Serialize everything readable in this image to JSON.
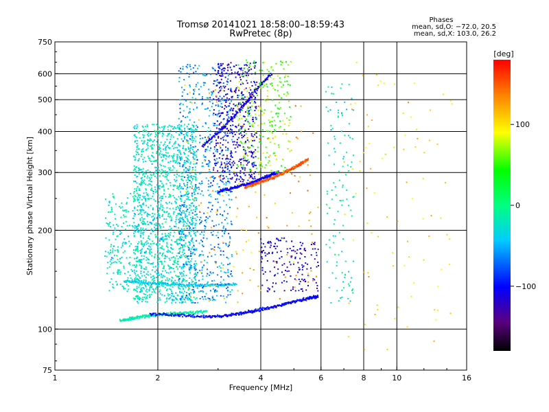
{
  "header": {
    "title_line1": "Tromsø 20141021 18:58:00–18:59:43",
    "title_line2": "RwPretec (8p)",
    "stats_heading": "Phases",
    "stats_o": "mean, sd,O: −72.0, 20.5",
    "stats_x": "mean, sd,X: 103.0, 26.2"
  },
  "chart_data": {
    "type": "scatter",
    "xlabel": "Frequency [MHz]",
    "ylabel": "Stationary phase Virtual Height [km]",
    "x_scale": "log",
    "y_scale": "log",
    "xlim": [
      1,
      16
    ],
    "ylim": [
      75,
      750
    ],
    "x_ticks": [
      1,
      2,
      4,
      6,
      8,
      10,
      16
    ],
    "x_tick_labels": [
      "1",
      "2",
      "4",
      "6",
      "8",
      "10",
      "16"
    ],
    "y_ticks": [
      75,
      100,
      200,
      300,
      400,
      500,
      600,
      750
    ],
    "y_tick_labels": [
      "75",
      "100",
      "200",
      "300",
      "400",
      "500",
      "600",
      "750"
    ],
    "x_grid": [
      2,
      4,
      6,
      8,
      10
    ],
    "y_grid": [
      100,
      200,
      300,
      400,
      500,
      600
    ],
    "grid": true,
    "colorbar": {
      "label": "[deg]",
      "range": [
        -180,
        180
      ],
      "ticks": [
        100,
        0,
        -100
      ],
      "tick_labels": [
        "100",
        "0",
        "−100"
      ],
      "colormap": "rainbow"
    },
    "series": [
      {
        "traces": [
          {
            "f": [
              1.55,
              1.7,
              1.9,
              2.1,
              2.4,
              2.8
            ],
            "h": [
              106,
              108,
              110,
              111,
              112,
              113
            ],
            "phase": -15
          },
          {
            "f": [
              1.9,
              2.3,
              2.8,
              3.2,
              3.6,
              4.0,
              4.5,
              5.0,
              5.5,
              5.9
            ],
            "h": [
              111,
              110,
              109,
              110,
              112,
              115,
              118,
              121,
              124,
              126
            ],
            "phase": -100
          },
          {
            "f": [
              1.6,
              1.9,
              2.2,
              2.6,
              3.0,
              3.4
            ],
            "h": [
              140,
              138,
              137,
              136,
              136,
              137
            ],
            "phase": -40
          },
          {
            "f": [
              3.0,
              3.3,
              3.6,
              3.9,
              4.2,
              4.5
            ],
            "h": [
              262,
              268,
              275,
              283,
              292,
              302
            ],
            "phase": -105
          },
          {
            "f": [
              3.6,
              3.9,
              4.3,
              4.7,
              5.1,
              5.5
            ],
            "h": [
              270,
              278,
              288,
              300,
              314,
              330
            ],
            "phase": 150
          },
          {
            "f": [
              2.7,
              3.1,
              3.5,
              3.9,
              4.3
            ],
            "h": [
              360,
              410,
              470,
              540,
              600
            ],
            "phase": -110
          }
        ],
        "clouds": [
          {
            "f": [
              1.7,
              2.6
            ],
            "h": [
              120,
              420
            ],
            "phase": -25,
            "n": 1500
          },
          {
            "f": [
              1.4,
              1.8
            ],
            "h": [
              130,
              260
            ],
            "phase": -25,
            "n": 220
          },
          {
            "f": [
              2.3,
              3.3
            ],
            "h": [
              120,
              640
            ],
            "phase": -60,
            "n": 700
          },
          {
            "f": [
              2.9,
              3.9
            ],
            "h": [
              280,
              650
            ],
            "phase": -110,
            "n": 500
          },
          {
            "f": [
              3.4,
              4.9
            ],
            "h": [
              300,
              660
            ],
            "phase": 60,
            "n": 260
          },
          {
            "f": [
              4.0,
              5.9
            ],
            "h": [
              130,
              190
            ],
            "phase": -110,
            "n": 170
          },
          {
            "f": [
              6.2,
              7.5
            ],
            "h": [
              120,
              560
            ],
            "phase": -20,
            "n": 120
          },
          {
            "f": [
              7.0,
              14.5
            ],
            "h": [
              85,
              650
            ],
            "phase": 100,
            "n": 90
          },
          {
            "f": [
              2.4,
              5.9
            ],
            "h": [
              120,
              560
            ],
            "phase": 120,
            "n": 160
          }
        ]
      }
    ]
  }
}
